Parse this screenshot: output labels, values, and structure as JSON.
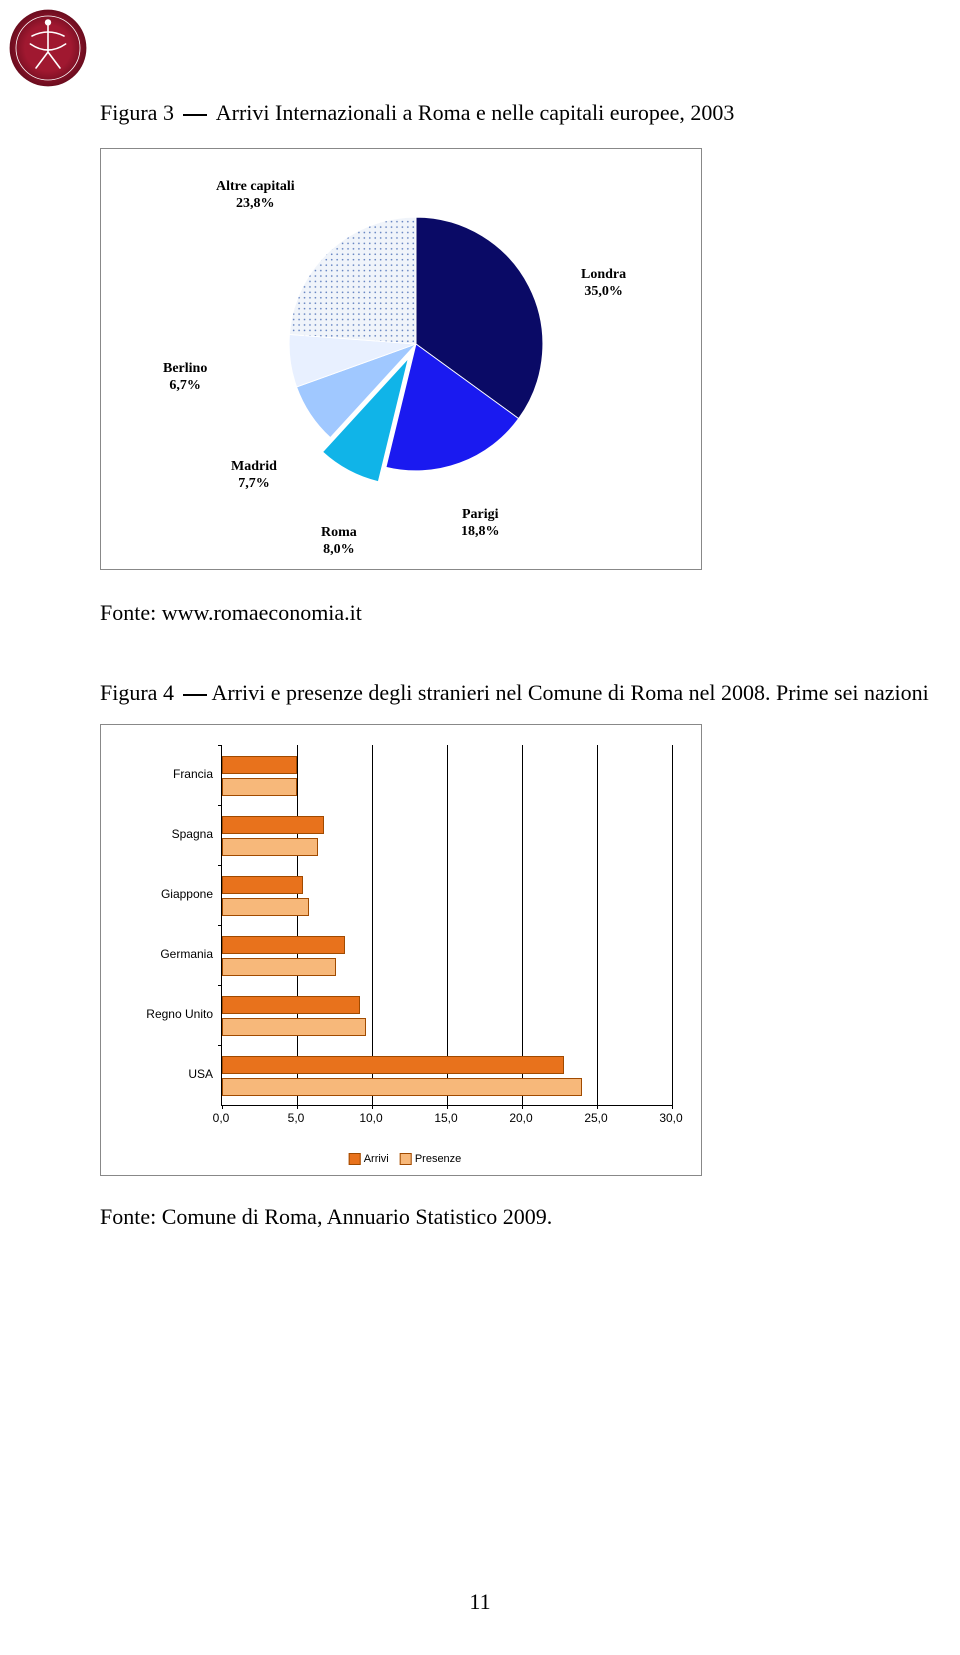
{
  "logo": {
    "outer_color": "#8a1126",
    "inner_color": "#ffffff"
  },
  "figure3": {
    "caption_prefix": "Figura 3 ",
    "caption_text": " Arrivi Internazionali a Roma e nelle capitali europee, 2003",
    "source": "Fonte: www.romaeconomia.it",
    "pie": {
      "type": "pie",
      "slices": [
        {
          "label": "Londra",
          "pct_text": "35,0%",
          "value": 35.0,
          "color": "#0a0a66",
          "exploded": false
        },
        {
          "label": "Parigi",
          "pct_text": "18,8%",
          "value": 18.8,
          "color": "#1a1af0",
          "exploded": false
        },
        {
          "label": "Roma",
          "pct_text": "8,0%",
          "value": 8.0,
          "color": "#10b4e8",
          "exploded": true
        },
        {
          "label": "Madrid",
          "pct_text": "7,7%",
          "value": 7.7,
          "color": "#a0c8ff",
          "exploded": false
        },
        {
          "label": "Berlino",
          "pct_text": "6,7%",
          "value": 6.7,
          "color": "#e8f0ff",
          "exploded": false
        },
        {
          "label": "Altre capitali",
          "pct_text": "23,8%",
          "value": 23.8,
          "color": "#d8e0f0",
          "exploded": false,
          "pattern": "dots"
        }
      ],
      "label_fontsize": 14,
      "label_fontweight": "bold",
      "background": "#ffffff",
      "border_color": "#888888"
    }
  },
  "figure4": {
    "caption_prefix": "Figura 4 ",
    "caption_text": "Arrivi e presenze degli stranieri nel Comune di Roma nel 2008. Prime sei nazioni",
    "source": "Fonte: Comune di Roma, Annuario Statistico 2009.",
    "chart": {
      "type": "bar-horizontal-grouped",
      "categories": [
        "Francia",
        "Spagna",
        "Giappone",
        "Germania",
        "Regno Unito",
        "USA"
      ],
      "series": [
        {
          "name": "Arrivi",
          "color": "#e8721c",
          "values": [
            5.0,
            6.8,
            5.4,
            8.2,
            9.2,
            22.8
          ]
        },
        {
          "name": "Presenze",
          "color": "#f7b87a",
          "values": [
            5.0,
            6.4,
            5.8,
            7.6,
            9.6,
            24.0
          ]
        }
      ],
      "xlim": [
        0.0,
        30.0
      ],
      "xticks": [
        "0,0",
        "5,0",
        "10,0",
        "15,0",
        "20,0",
        "25,0",
        "30,0"
      ],
      "xtick_step": 5.0,
      "category_label_fontsize": 12,
      "tick_label_fontsize": 12,
      "bar_border_color": "#a04a00",
      "grid_color": "#000000",
      "background": "#ffffff",
      "border_color": "#888888",
      "legend_labels": [
        "Arrivi",
        "Presenze"
      ]
    }
  },
  "page_number": "11"
}
